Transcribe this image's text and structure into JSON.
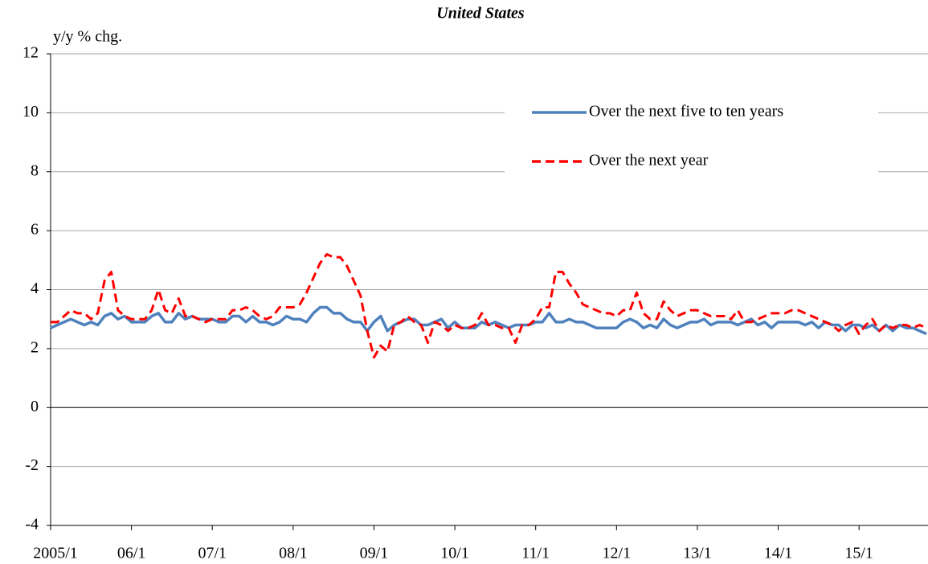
{
  "chart_data": {
    "type": "line",
    "title": "United States",
    "y_label": "y/y % chg.",
    "categories": [
      "2005/1",
      null,
      null,
      null,
      null,
      null,
      null,
      null,
      null,
      null,
      null,
      null,
      "06/1",
      null,
      null,
      null,
      null,
      null,
      null,
      null,
      null,
      null,
      null,
      null,
      "07/1",
      null,
      null,
      null,
      null,
      null,
      null,
      null,
      null,
      null,
      null,
      null,
      "08/1",
      null,
      null,
      null,
      null,
      null,
      null,
      null,
      null,
      null,
      null,
      null,
      "09/1",
      null,
      null,
      null,
      null,
      null,
      null,
      null,
      null,
      null,
      null,
      null,
      "10/1",
      null,
      null,
      null,
      null,
      null,
      null,
      null,
      null,
      null,
      null,
      null,
      "11/1",
      null,
      null,
      null,
      null,
      null,
      null,
      null,
      null,
      null,
      null,
      null,
      "12/1",
      null,
      null,
      null,
      null,
      null,
      null,
      null,
      null,
      null,
      null,
      null,
      "13/1",
      null,
      null,
      null,
      null,
      null,
      null,
      null,
      null,
      null,
      null,
      null,
      "14/1",
      null,
      null,
      null,
      null,
      null,
      null,
      null,
      null,
      null,
      null,
      null,
      "15/1",
      null,
      null,
      null,
      null,
      null,
      null,
      null,
      null,
      null,
      null
    ],
    "series": [
      {
        "name": "Over the next five to ten years",
        "color": "#4f81bd",
        "dash": false,
        "values": [
          2.7,
          2.8,
          2.9,
          3.0,
          2.9,
          2.8,
          2.9,
          2.8,
          3.1,
          3.2,
          3.0,
          3.1,
          2.9,
          2.9,
          2.9,
          3.1,
          3.2,
          2.9,
          2.9,
          3.2,
          3.0,
          3.1,
          3.0,
          3.0,
          3.0,
          2.9,
          2.9,
          3.1,
          3.1,
          2.9,
          3.1,
          2.9,
          2.9,
          2.8,
          2.9,
          3.1,
          3.0,
          3.0,
          2.9,
          3.2,
          3.4,
          3.4,
          3.2,
          3.2,
          3.0,
          2.9,
          2.9,
          2.6,
          2.9,
          3.1,
          2.6,
          2.8,
          2.9,
          3.0,
          3.0,
          2.8,
          2.8,
          2.9,
          3.0,
          2.7,
          2.9,
          2.7,
          2.7,
          2.7,
          2.9,
          2.8,
          2.9,
          2.8,
          2.7,
          2.8,
          2.8,
          2.8,
          2.9,
          2.9,
          3.2,
          2.9,
          2.9,
          3.0,
          2.9,
          2.9,
          2.8,
          2.7,
          2.7,
          2.7,
          2.7,
          2.9,
          3.0,
          2.9,
          2.7,
          2.8,
          2.7,
          3.0,
          2.8,
          2.7,
          2.8,
          2.9,
          2.9,
          3.0,
          2.8,
          2.9,
          2.9,
          2.9,
          2.8,
          2.9,
          3.0,
          2.8,
          2.9,
          2.7,
          2.9,
          2.9,
          2.9,
          2.9,
          2.8,
          2.9,
          2.7,
          2.9,
          2.8,
          2.8,
          2.6,
          2.8,
          2.8,
          2.7,
          2.8,
          2.6,
          2.8,
          2.6,
          2.8,
          2.7,
          2.7,
          2.6,
          2.5
        ]
      },
      {
        "name": "Over the next year",
        "color": "#ff0000",
        "dash": true,
        "values": [
          2.9,
          2.9,
          3.1,
          3.3,
          3.2,
          3.2,
          3.0,
          3.2,
          4.3,
          4.6,
          3.3,
          3.1,
          3.0,
          3.0,
          3.0,
          3.3,
          4.0,
          3.3,
          3.2,
          3.7,
          3.1,
          3.1,
          3.0,
          2.9,
          3.0,
          3.0,
          3.0,
          3.3,
          3.3,
          3.4,
          3.3,
          3.1,
          3.0,
          3.1,
          3.4,
          3.4,
          3.4,
          3.5,
          3.9,
          4.4,
          4.9,
          5.2,
          5.1,
          5.1,
          4.8,
          4.3,
          3.8,
          2.6,
          1.7,
          2.1,
          1.9,
          2.8,
          2.9,
          3.1,
          2.9,
          2.8,
          2.2,
          2.9,
          2.8,
          2.6,
          2.8,
          2.7,
          2.7,
          2.8,
          3.2,
          2.8,
          2.8,
          2.7,
          2.7,
          2.2,
          2.8,
          2.8,
          3.0,
          3.4,
          3.4,
          4.6,
          4.6,
          4.2,
          3.9,
          3.5,
          3.4,
          3.3,
          3.2,
          3.2,
          3.1,
          3.3,
          3.3,
          3.9,
          3.2,
          3.0,
          3.0,
          3.6,
          3.3,
          3.1,
          3.2,
          3.3,
          3.3,
          3.2,
          3.1,
          3.1,
          3.1,
          3.0,
          3.3,
          2.9,
          2.9,
          3.0,
          3.1,
          3.2,
          3.2,
          3.2,
          3.3,
          3.3,
          3.2,
          3.1,
          3.0,
          2.9,
          2.8,
          2.6,
          2.8,
          2.9,
          2.5,
          2.8,
          3.0,
          2.6,
          2.8,
          2.7,
          2.8,
          2.8,
          2.7,
          2.8,
          2.7
        ]
      }
    ],
    "ylim": [
      -4,
      12
    ],
    "yticks": [
      -4,
      -2,
      0,
      2,
      4,
      6,
      8,
      10,
      12
    ],
    "grid": true,
    "legend": "upper right"
  }
}
